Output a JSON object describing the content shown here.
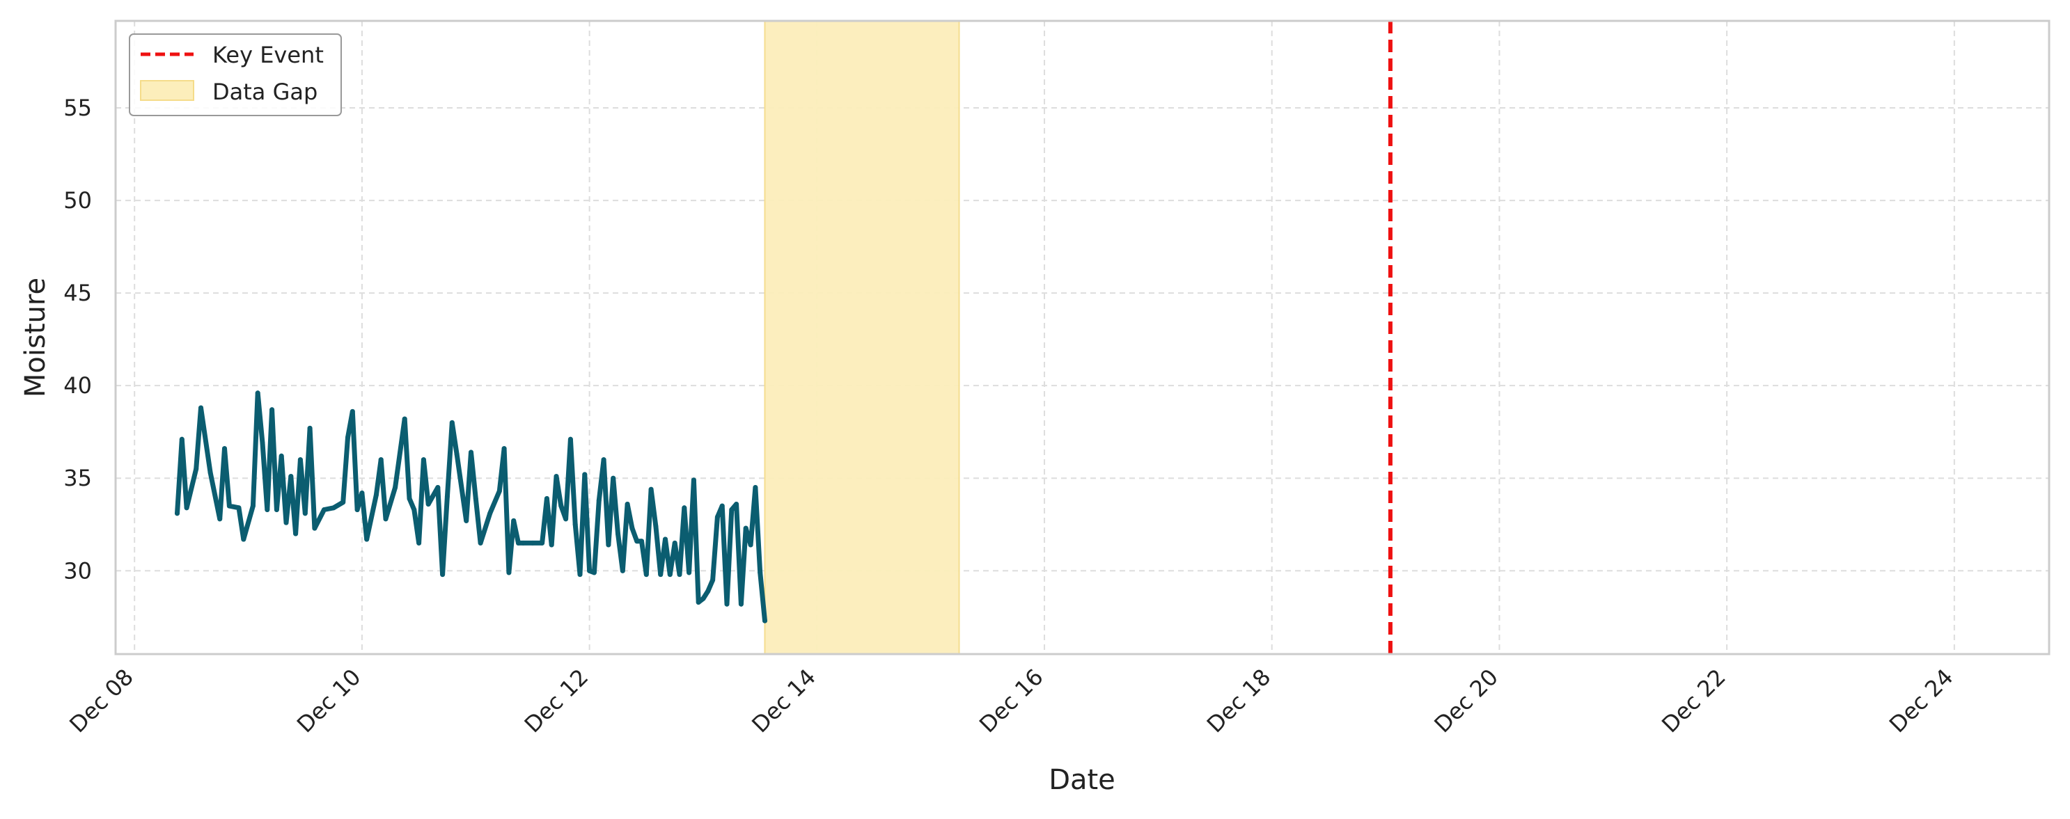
{
  "chart_data": {
    "type": "line",
    "title": "",
    "xlabel": "Date",
    "ylabel": "Moisture",
    "xlim": [
      "2024-12-07T20:00",
      "2024-12-24T20:00"
    ],
    "ylim": [
      25.5,
      59.7
    ],
    "x_ticks": [
      {
        "date": "2024-12-08",
        "label": "Dec 08"
      },
      {
        "date": "2024-12-10",
        "label": "Dec 10"
      },
      {
        "date": "2024-12-12",
        "label": "Dec 12"
      },
      {
        "date": "2024-12-14",
        "label": "Dec 14"
      },
      {
        "date": "2024-12-16",
        "label": "Dec 16"
      },
      {
        "date": "2024-12-18",
        "label": "Dec 18"
      },
      {
        "date": "2024-12-20",
        "label": "Dec 20"
      },
      {
        "date": "2024-12-22",
        "label": "Dec 22"
      },
      {
        "date": "2024-12-24",
        "label": "Dec 24"
      }
    ],
    "y_ticks": [
      {
        "value": 30,
        "label": "30"
      },
      {
        "value": 35,
        "label": "35"
      },
      {
        "value": 40,
        "label": "40"
      },
      {
        "value": 45,
        "label": "45"
      },
      {
        "value": 50,
        "label": "50"
      },
      {
        "value": 55,
        "label": "55"
      }
    ],
    "grid": true,
    "legend_position": "top-left",
    "legend": [
      {
        "label": "Key Event",
        "kind": "dashed-line",
        "color": "#ee1111"
      },
      {
        "label": "Data Gap",
        "kind": "patch",
        "color": "#fceebb"
      }
    ],
    "key_event": {
      "label": "Key Event",
      "date": "2024-12-19T01:00",
      "color": "#ee1111"
    },
    "data_gap": {
      "label": "Data Gap",
      "start": "2024-12-13T13:00",
      "end": "2024-12-15T06:00",
      "color": "#fceebb"
    },
    "series": [
      {
        "color": "#0b5d70",
        "points": [
          [
            "2024-12-08T09:00",
            33.1
          ],
          [
            "2024-12-08T10:00",
            37.1
          ],
          [
            "2024-12-08T11:00",
            33.4
          ],
          [
            "2024-12-08T13:00",
            35.5
          ],
          [
            "2024-12-08T14:00",
            38.8
          ],
          [
            "2024-12-08T16:00",
            35.3
          ],
          [
            "2024-12-08T18:00",
            32.8
          ],
          [
            "2024-12-08T19:00",
            36.6
          ],
          [
            "2024-12-08T20:00",
            33.5
          ],
          [
            "2024-12-08T22:00",
            33.4
          ],
          [
            "2024-12-08T23:00",
            31.7
          ],
          [
            "2024-12-09T01:00",
            33.5
          ],
          [
            "2024-12-09T02:00",
            39.6
          ],
          [
            "2024-12-09T03:00",
            36.9
          ],
          [
            "2024-12-09T04:00",
            33.3
          ],
          [
            "2024-12-09T05:00",
            38.7
          ],
          [
            "2024-12-09T06:00",
            33.3
          ],
          [
            "2024-12-09T07:00",
            36.2
          ],
          [
            "2024-12-09T08:00",
            32.6
          ],
          [
            "2024-12-09T09:00",
            35.1
          ],
          [
            "2024-12-09T10:00",
            32.0
          ],
          [
            "2024-12-09T11:00",
            36.0
          ],
          [
            "2024-12-09T12:00",
            33.1
          ],
          [
            "2024-12-09T13:00",
            37.7
          ],
          [
            "2024-12-09T14:00",
            32.3
          ],
          [
            "2024-12-09T16:00",
            33.3
          ],
          [
            "2024-12-09T18:00",
            33.4
          ],
          [
            "2024-12-09T20:00",
            33.7
          ],
          [
            "2024-12-09T21:00",
            37.2
          ],
          [
            "2024-12-09T22:00",
            38.6
          ],
          [
            "2024-12-09T23:00",
            33.3
          ],
          [
            "2024-12-10T00:00",
            34.2
          ],
          [
            "2024-12-10T01:00",
            31.7
          ],
          [
            "2024-12-10T03:00",
            34.1
          ],
          [
            "2024-12-10T04:00",
            36.0
          ],
          [
            "2024-12-10T05:00",
            32.8
          ],
          [
            "2024-12-10T07:00",
            34.5
          ],
          [
            "2024-12-10T09:00",
            38.2
          ],
          [
            "2024-12-10T10:00",
            33.9
          ],
          [
            "2024-12-10T11:00",
            33.3
          ],
          [
            "2024-12-10T12:00",
            31.5
          ],
          [
            "2024-12-10T13:00",
            36.0
          ],
          [
            "2024-12-10T14:00",
            33.6
          ],
          [
            "2024-12-10T16:00",
            34.5
          ],
          [
            "2024-12-10T17:00",
            29.8
          ],
          [
            "2024-12-10T18:00",
            34.0
          ],
          [
            "2024-12-10T19:00",
            38.0
          ],
          [
            "2024-12-10T20:00",
            36.3
          ],
          [
            "2024-12-10T22:00",
            32.7
          ],
          [
            "2024-12-10T23:00",
            36.4
          ],
          [
            "2024-12-11T00:00",
            33.9
          ],
          [
            "2024-12-11T01:00",
            31.5
          ],
          [
            "2024-12-11T03:00",
            33.1
          ],
          [
            "2024-12-11T05:00",
            34.3
          ],
          [
            "2024-12-11T06:00",
            36.6
          ],
          [
            "2024-12-11T07:00",
            29.9
          ],
          [
            "2024-12-11T08:00",
            32.7
          ],
          [
            "2024-12-11T09:00",
            31.5
          ],
          [
            "2024-12-11T10:00",
            31.5
          ],
          [
            "2024-12-11T12:00",
            31.5
          ],
          [
            "2024-12-11T14:00",
            31.5
          ],
          [
            "2024-12-11T15:00",
            33.9
          ],
          [
            "2024-12-11T16:00",
            31.4
          ],
          [
            "2024-12-11T17:00",
            35.1
          ],
          [
            "2024-12-11T18:00",
            33.5
          ],
          [
            "2024-12-11T19:00",
            32.8
          ],
          [
            "2024-12-11T20:00",
            37.1
          ],
          [
            "2024-12-11T21:00",
            32.5
          ],
          [
            "2024-12-11T22:00",
            29.8
          ],
          [
            "2024-12-11T23:00",
            35.2
          ],
          [
            "2024-12-12T00:00",
            30.0
          ],
          [
            "2024-12-12T01:00",
            29.9
          ],
          [
            "2024-12-12T02:00",
            33.8
          ],
          [
            "2024-12-12T03:00",
            36.0
          ],
          [
            "2024-12-12T04:00",
            31.4
          ],
          [
            "2024-12-12T05:00",
            35.0
          ],
          [
            "2024-12-12T06:00",
            32.0
          ],
          [
            "2024-12-12T07:00",
            30.0
          ],
          [
            "2024-12-12T08:00",
            33.6
          ],
          [
            "2024-12-12T09:00",
            32.3
          ],
          [
            "2024-12-12T10:00",
            31.6
          ],
          [
            "2024-12-12T11:00",
            31.6
          ],
          [
            "2024-12-12T12:00",
            29.8
          ],
          [
            "2024-12-12T13:00",
            34.4
          ],
          [
            "2024-12-12T14:00",
            32.4
          ],
          [
            "2024-12-12T15:00",
            29.8
          ],
          [
            "2024-12-12T16:00",
            31.7
          ],
          [
            "2024-12-12T17:00",
            29.8
          ],
          [
            "2024-12-12T18:00",
            31.5
          ],
          [
            "2024-12-12T19:00",
            29.8
          ],
          [
            "2024-12-12T20:00",
            33.4
          ],
          [
            "2024-12-12T21:00",
            29.9
          ],
          [
            "2024-12-12T22:00",
            34.9
          ],
          [
            "2024-12-12T23:00",
            28.3
          ],
          [
            "2024-12-13T00:00",
            28.5
          ],
          [
            "2024-12-13T01:00",
            28.9
          ],
          [
            "2024-12-13T02:00",
            29.5
          ],
          [
            "2024-12-13T03:00",
            32.9
          ],
          [
            "2024-12-13T04:00",
            33.5
          ],
          [
            "2024-12-13T05:00",
            28.2
          ],
          [
            "2024-12-13T06:00",
            33.3
          ],
          [
            "2024-12-13T07:00",
            33.6
          ],
          [
            "2024-12-13T08:00",
            28.2
          ],
          [
            "2024-12-13T09:00",
            32.3
          ],
          [
            "2024-12-13T10:00",
            31.4
          ],
          [
            "2024-12-13T11:00",
            34.5
          ],
          [
            "2024-12-13T12:00",
            29.9
          ],
          [
            "2024-12-13T13:00",
            27.3
          ]
        ]
      }
    ]
  }
}
